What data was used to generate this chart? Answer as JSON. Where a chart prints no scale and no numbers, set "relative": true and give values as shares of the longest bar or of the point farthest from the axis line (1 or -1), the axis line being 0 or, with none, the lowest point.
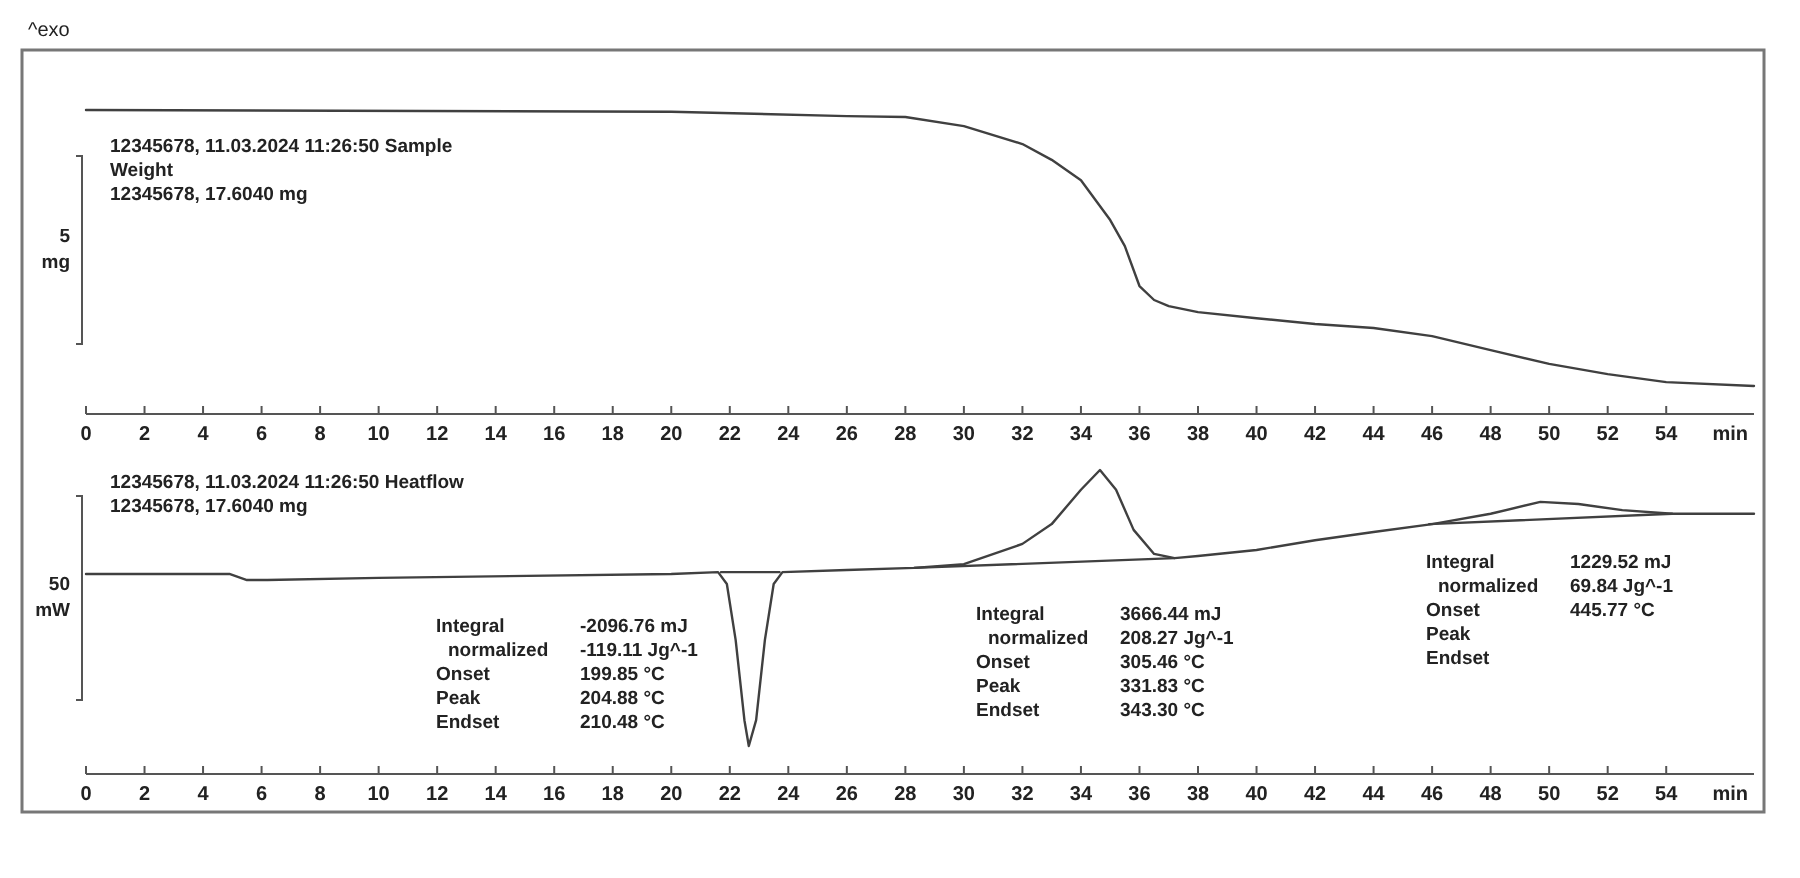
{
  "chart_data": [
    {
      "type": "line",
      "title": "^exo",
      "ylabel": "5 mg",
      "xlabel": "min",
      "relative": true,
      "xlim": [
        0,
        57
      ],
      "xticks": [
        0,
        2,
        4,
        6,
        8,
        10,
        12,
        14,
        16,
        18,
        20,
        22,
        24,
        26,
        28,
        30,
        32,
        34,
        36,
        38,
        40,
        42,
        44,
        46,
        48,
        50,
        52,
        54
      ],
      "annotations": [
        "12345678, 11.03.2024 11:26:50 Sample\nWeight\n12345678, 17.6040 mg"
      ],
      "series": [
        {
          "color": "#404040",
          "x": [
            0,
            20,
            26,
            28,
            30,
            32,
            33,
            34,
            35,
            35.5,
            36,
            36.5,
            37,
            38,
            40,
            42,
            44,
            46,
            48,
            50,
            52,
            54,
            57
          ],
          "values": [
            1.0,
            0.994,
            0.98,
            0.977,
            0.947,
            0.888,
            0.836,
            0.769,
            0.638,
            0.552,
            0.421,
            0.375,
            0.355,
            0.335,
            0.315,
            0.296,
            0.283,
            0.256,
            0.21,
            0.165,
            0.131,
            0.105,
            0.092
          ]
        }
      ]
    },
    {
      "type": "line",
      "ylabel": "50 mW",
      "xlabel": "min",
      "relative": true,
      "xlim": [
        0,
        57
      ],
      "xticks": [
        0,
        2,
        4,
        6,
        8,
        10,
        12,
        14,
        16,
        18,
        20,
        22,
        24,
        26,
        28,
        30,
        32,
        34,
        36,
        38,
        40,
        42,
        44,
        46,
        48,
        50,
        52,
        54
      ],
      "annotations": [
        "12345678, 11.03.2024 11:26:50 Heatflow\n12345678, 17.6040 mg",
        "Integral\n  normalized\nOnset\nPeak\nEndset",
        "-2096.76 mJ\n-119.11 Jg^-1\n199.85 °C\n204.88 °C\n210.48 °C",
        "Integral\n  normalized\nOnset\nPeak\nEndset",
        "3666.44 mJ\n208.27 Jg^-1\n305.46 °C\n331.83 °C\n343.30 °C",
        "Integral\n  normalized\nOnset\nPeak\nEndset",
        "1229.52 mJ\n69.84 Jg^-1\n445.77 °C"
      ],
      "series": [
        {
          "color": "#404040",
          "x": [
            0,
            4.9,
            5.5,
            6.2,
            10,
            20,
            21.6,
            21.9,
            22.2,
            22.5,
            22.65,
            22.9,
            23.2,
            23.5,
            23.8,
            26,
            28.3,
            30,
            32,
            33,
            34,
            34.65,
            35.2,
            35.8,
            36.5,
            37.2,
            38,
            40,
            42,
            44,
            46,
            48,
            49.7,
            51,
            52.5,
            54.2,
            57
          ],
          "values": [
            0.658,
            0.658,
            0.638,
            0.638,
            0.645,
            0.658,
            0.664,
            0.625,
            0.441,
            0.177,
            0.092,
            0.177,
            0.441,
            0.625,
            0.664,
            0.671,
            0.678,
            0.69,
            0.757,
            0.822,
            0.935,
            1,
            0.935,
            0.803,
            0.724,
            0.71,
            0.717,
            0.737,
            0.769,
            0.796,
            0.822,
            0.856,
            0.895,
            0.888,
            0.868,
            0.856,
            0.856
          ]
        },
        {
          "type": "line",
          "color": "#404040",
          "x": [
            21.7,
            23.7
          ],
          "values": [
            0.664,
            0.664
          ]
        },
        {
          "type": "line",
          "color": "#404040",
          "x": [
            28.3,
            37.2
          ],
          "values": [
            0.678,
            0.71
          ]
        },
        {
          "type": "line",
          "color": "#404040",
          "x": [
            45.9,
            54.2
          ],
          "values": [
            0.822,
            0.856
          ]
        }
      ]
    }
  ]
}
